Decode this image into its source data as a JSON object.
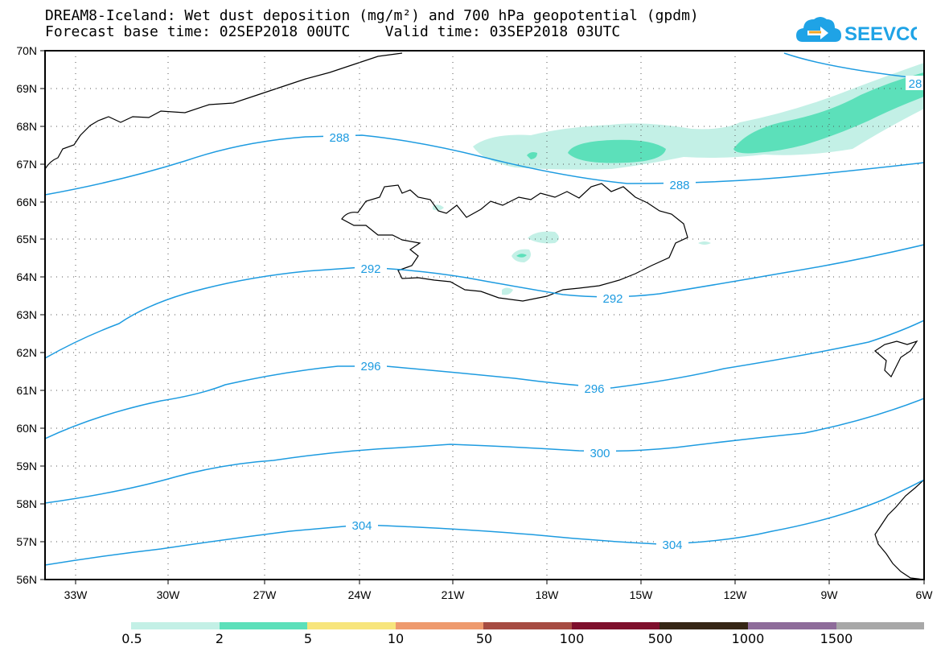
{
  "header": {
    "title_line1": "DREAM8-Iceland: Wet dust deposition (mg/m²) and 700 hPa geopotential (gpdm)",
    "title_line2": "Forecast base time: 02SEP2018 00UTC    Valid time: 03SEP2018 03UTC"
  },
  "logo": {
    "text": "SEEVCCC",
    "color": "#1fa3e6",
    "icon": "cloud-arrow-icon"
  },
  "map": {
    "lat_labels": [
      "70N",
      "69N",
      "68N",
      "67N",
      "66N",
      "65N",
      "64N",
      "63N",
      "62N",
      "61N",
      "60N",
      "59N",
      "58N",
      "57N",
      "56N"
    ],
    "lon_labels": [
      "33W",
      "30W",
      "27W",
      "24W",
      "21W",
      "18W",
      "15W",
      "12W",
      "9W",
      "6W"
    ],
    "contour_color": "#1d9be0",
    "contour_labels": [
      {
        "id": "c288a",
        "text": "288"
      },
      {
        "id": "c288b",
        "text": "288"
      },
      {
        "id": "c288c",
        "text": "28"
      },
      {
        "id": "c292a",
        "text": "292"
      },
      {
        "id": "c292b",
        "text": "292"
      },
      {
        "id": "c296a",
        "text": "296"
      },
      {
        "id": "c296b",
        "text": "296"
      },
      {
        "id": "c300a",
        "text": "300"
      },
      {
        "id": "c304a",
        "text": "304"
      },
      {
        "id": "c304b",
        "text": "304"
      }
    ],
    "deposition_colors": {
      "light": "#c3f0e6",
      "medium": "#5ce0ba"
    }
  },
  "colorbar": {
    "colors": [
      "#c3f0e6",
      "#5ce0ba",
      "#f7e57c",
      "#ee9a6e",
      "#a64c42",
      "#7e0f2c",
      "#362616",
      "#8e6c9a",
      "#a8a8a8"
    ],
    "labels": [
      "0.5",
      "2",
      "5",
      "10",
      "50",
      "100",
      "500",
      "1000",
      "1500"
    ]
  }
}
